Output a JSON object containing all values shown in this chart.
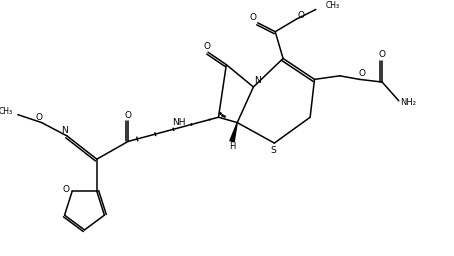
{
  "figsize": [
    4.54,
    2.56
  ],
  "dpi": 100,
  "bg_color": "#ffffff",
  "lc": "#000000",
  "lw": 1.1,
  "fs": 6.5,
  "xlim": [
    0,
    10
  ],
  "ylim": [
    0,
    5.6
  ]
}
